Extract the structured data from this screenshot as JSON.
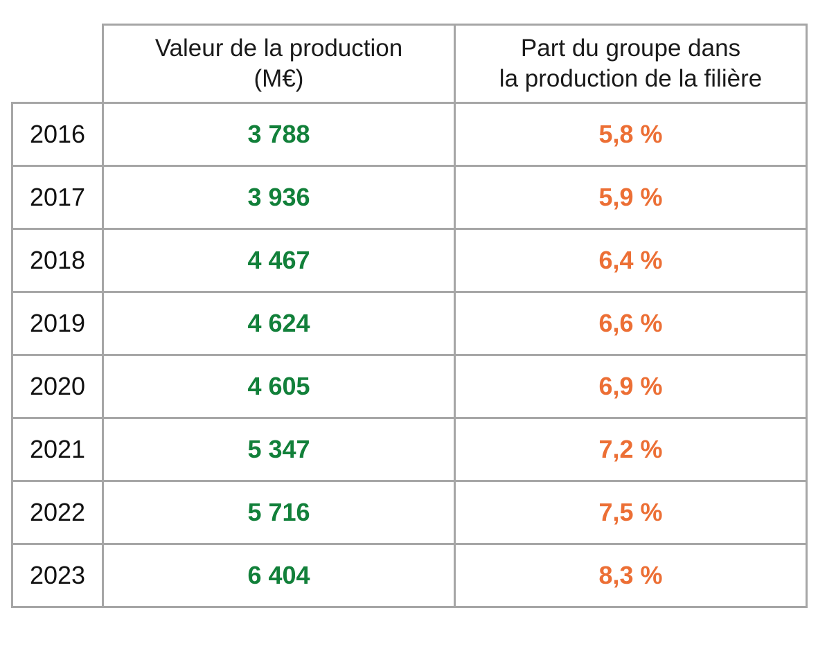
{
  "chart_data": {
    "type": "table",
    "columns": [
      {
        "lines": [
          "Valeur de la production",
          "(M€)"
        ]
      },
      {
        "lines": [
          "Part du groupe dans",
          "la production de la filière"
        ]
      }
    ],
    "rows": [
      {
        "year": "2016",
        "value": "3 788",
        "share": "5,8 %"
      },
      {
        "year": "2017",
        "value": "3 936",
        "share": "5,9 %"
      },
      {
        "year": "2018",
        "value": "4 467",
        "share": "6,4 %"
      },
      {
        "year": "2019",
        "value": "4 624",
        "share": "6,6 %"
      },
      {
        "year": "2020",
        "value": "4 605",
        "share": "6,9 %"
      },
      {
        "year": "2021",
        "value": "5 347",
        "share": "7,2 %"
      },
      {
        "year": "2022",
        "value": "5 716",
        "share": "7,5 %"
      },
      {
        "year": "2023",
        "value": "6 404",
        "share": "8,3 %"
      }
    ]
  },
  "colors": {
    "value": "#12803a",
    "share": "#ec6f35",
    "border": "#a6a6a6"
  }
}
